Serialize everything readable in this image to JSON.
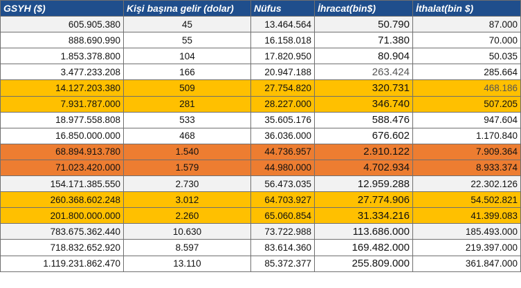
{
  "table": {
    "headers": [
      "GSYH ($)",
      "Kişi başına gelir (dolar)",
      "Nüfus",
      "İhracat(bin$)",
      "İthalat(bin $)"
    ],
    "rows": [
      {
        "style": "c-light",
        "cells": [
          "605.905.380",
          "45",
          "13.464.564",
          "50.790",
          "87.000"
        ]
      },
      {
        "style": "c-white",
        "cells": [
          "888.690.990",
          "55",
          "16.158.018",
          "71.380",
          "70.000"
        ]
      },
      {
        "style": "c-white",
        "cells": [
          "1.853.378.800",
          "104",
          "17.820.950",
          "80.904",
          "50.035"
        ]
      },
      {
        "style": "c-white",
        "cells": [
          "3.477.233.208",
          "166",
          "20.947.188",
          "263.424",
          "285.664"
        ]
      },
      {
        "style": "c-yellow",
        "cells": [
          "14.127.203.380",
          "509",
          "27.754.820",
          "320.731",
          "468.186"
        ]
      },
      {
        "style": "c-yellow",
        "cells": [
          "7.931.787.000",
          "281",
          "28.227.000",
          "346.740",
          "507.205"
        ]
      },
      {
        "style": "c-white",
        "cells": [
          "18.977.558.808",
          "533",
          "35.605.176",
          "588.476",
          "947.604"
        ]
      },
      {
        "style": "c-white",
        "cells": [
          "16.850.000.000",
          "468",
          "36.036.000",
          "676.602",
          "1.170.840"
        ]
      },
      {
        "style": "c-orange",
        "cells": [
          "68.894.913.780",
          "1.540",
          "44.736.957",
          "2.910.122",
          "7.909.364"
        ]
      },
      {
        "style": "c-orange",
        "cells": [
          "71.023.420.000",
          "1.579",
          "44.980.000",
          "4.702.934",
          "8.933.374"
        ]
      },
      {
        "style": "c-light",
        "cells": [
          "154.171.385.550",
          "2.730",
          "56.473.035",
          "12.959.288",
          "22.302.126"
        ]
      },
      {
        "style": "c-yellow",
        "cells": [
          "260.368.602.248",
          "3.012",
          "64.703.927",
          "27.774.906",
          "54.502.821"
        ]
      },
      {
        "style": "c-yellow",
        "cells": [
          "201.800.000.000",
          "2.260",
          "65.060.854",
          "31.334.216",
          "41.399.083"
        ]
      },
      {
        "style": "c-light",
        "cells": [
          "783.675.362.440",
          "10.630",
          "73.722.988",
          "113.686.000",
          "185.493.000"
        ]
      },
      {
        "style": "c-white",
        "cells": [
          "718.832.652.920",
          "8.597",
          "83.614.360",
          "169.482.000",
          "219.397.000"
        ]
      },
      {
        "style": "c-white",
        "cells": [
          "1.119.231.862.470",
          "13.110",
          "85.372.377",
          "255.809.000",
          "361.847.000"
        ]
      }
    ]
  }
}
